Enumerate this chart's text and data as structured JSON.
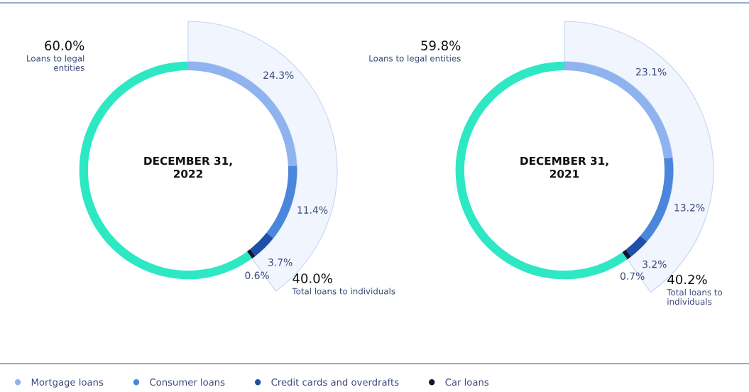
{
  "chart_data": [
    {
      "type": "donut",
      "title": "DECEMBER 31, 2022",
      "categories": [
        "Mortgage loans",
        "Consumer loans",
        "Credit cards and overdrafts",
        "Car loans",
        "Loans to legal entities"
      ],
      "values": [
        24.3,
        11.4,
        3.7,
        0.6,
        60.0
      ],
      "value_labels": [
        "24.3%",
        "11.4%",
        "3.7%",
        "0.6%",
        "60.0%"
      ],
      "colors": [
        "#8fb3ee",
        "#4a86dc",
        "#1f4fa8",
        "#0b1733",
        "#2ee8c4"
      ],
      "annotations": [
        "40.0%",
        "Total loans to individuals"
      ],
      "legend": "bottom"
    },
    {
      "type": "donut",
      "title": "DECEMBER 31, 2021",
      "categories": [
        null,
        null,
        null,
        null,
        "Loans to legal entities"
      ],
      "values": [
        23.1,
        13.2,
        3.2,
        0.7,
        59.8
      ],
      "value_labels": [
        "23.1%",
        "13.2%",
        "3.2%",
        "0.7%",
        "59.8%"
      ],
      "colors": [
        "#8fb3ee",
        "#4a86dc",
        "#1f4fa8",
        "#0b1733",
        "#2ee8c4"
      ],
      "annotations": [
        "40.2%",
        "Total loans to individuals"
      ]
    }
  ]
}
